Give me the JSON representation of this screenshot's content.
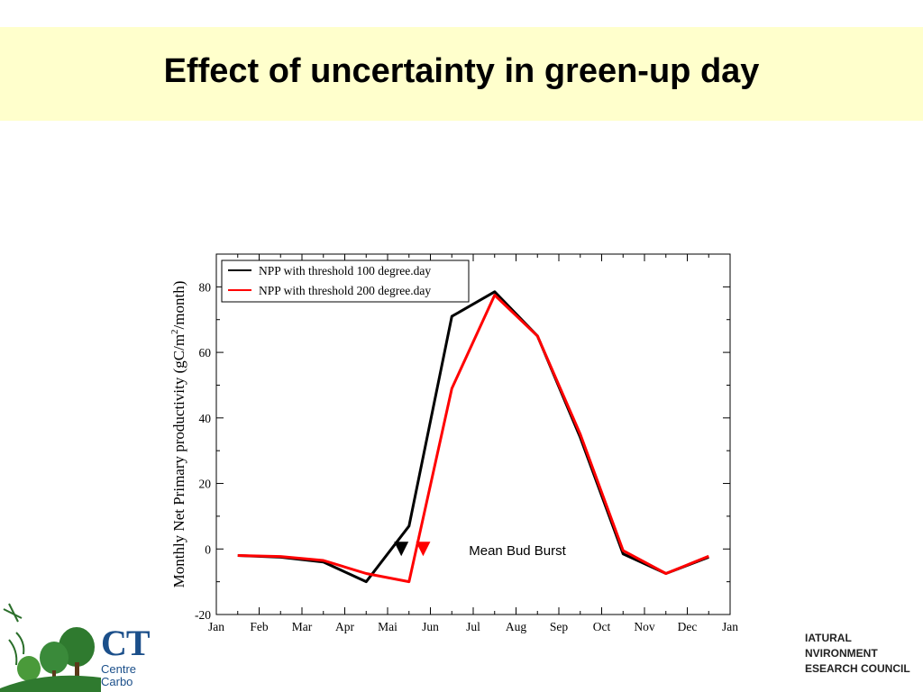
{
  "slide": {
    "title": "Effect of uncertainty in green-up day"
  },
  "chart_data": {
    "type": "line",
    "title": "",
    "xlabel": "",
    "ylabel": "Monthly Net Primary productivity (gC/m2/month)",
    "ylabel_parts": {
      "main": "Monthly Net Primary productivity (gC/m",
      "sup": "2",
      "tail": "/month)"
    },
    "xlim": [
      0,
      12
    ],
    "ylim": [
      -20,
      90
    ],
    "yticks": [
      -20,
      0,
      20,
      40,
      60,
      80
    ],
    "ytick_labels": [
      "-20",
      "0",
      "20",
      "40",
      "60",
      "80"
    ],
    "xtick_labels": [
      "Jan",
      "Feb",
      "Mar",
      "Apr",
      "Mai",
      "Jun",
      "Jul",
      "Aug",
      "Sep",
      "Oct",
      "Nov",
      "Dec",
      "Jan"
    ],
    "grid": false,
    "legend_position": "top-left",
    "series": [
      {
        "name": "NPP with threshold 100 degree.day",
        "color": "#000000",
        "x": [
          0.5,
          1.5,
          2.5,
          3.5,
          4.5,
          5.5,
          6.5,
          7.5,
          8.5,
          9.5,
          10.5,
          11.5
        ],
        "values": [
          -2,
          -2.5,
          -4,
          -10,
          7,
          71,
          78.5,
          65,
          34,
          -1.5,
          -7.5,
          -2.5
        ]
      },
      {
        "name": "NPP with threshold 200 degree.day",
        "color": "#ff0000",
        "x": [
          0.5,
          1.5,
          2.5,
          3.5,
          4.5,
          5.5,
          6.5,
          7.5,
          8.5,
          9.5,
          10.5,
          11.5
        ],
        "values": [
          -2,
          -2.3,
          -3.5,
          -7.5,
          -10,
          49,
          77.5,
          65,
          35,
          -0.5,
          -7.5,
          -2.2
        ]
      }
    ],
    "annotations": [
      {
        "text": "Mean Bud Burst",
        "x": 5.9,
        "y": -0.5
      }
    ],
    "markers": [
      {
        "name": "bud-burst-100",
        "color": "#000000",
        "x": 4.32,
        "y": 0
      },
      {
        "name": "bud-burst-200",
        "color": "#ff0000",
        "x": 4.83,
        "y": 0
      }
    ]
  },
  "logos": {
    "left": {
      "line1": "CT",
      "line2": "Centre",
      "line3": "Carbo"
    },
    "right": {
      "line1": "IATURAL",
      "line2": "NVIRONMENT",
      "line3": "ESEARCH COUNCIL"
    }
  }
}
